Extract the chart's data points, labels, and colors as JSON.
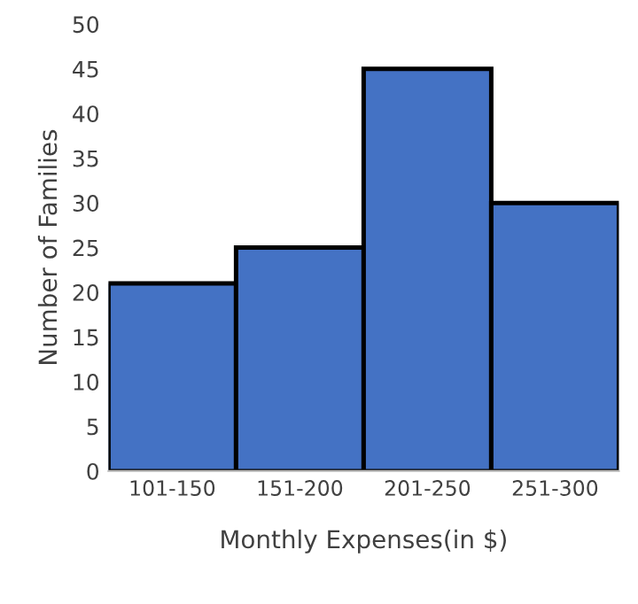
{
  "chart_data": {
    "type": "bar",
    "xlabel": "Monthly Expenses(in $)",
    "ylabel": "Number of Families",
    "categories": [
      "101-150",
      "151-200",
      "201-250",
      "251-300"
    ],
    "values": [
      21,
      25,
      45,
      30
    ],
    "color": "#4472c4",
    "ylim": [
      0,
      50
    ],
    "yticks": [
      0,
      5,
      10,
      15,
      20,
      25,
      30,
      35,
      40,
      45,
      50
    ],
    "grid": false,
    "legend": false
  }
}
